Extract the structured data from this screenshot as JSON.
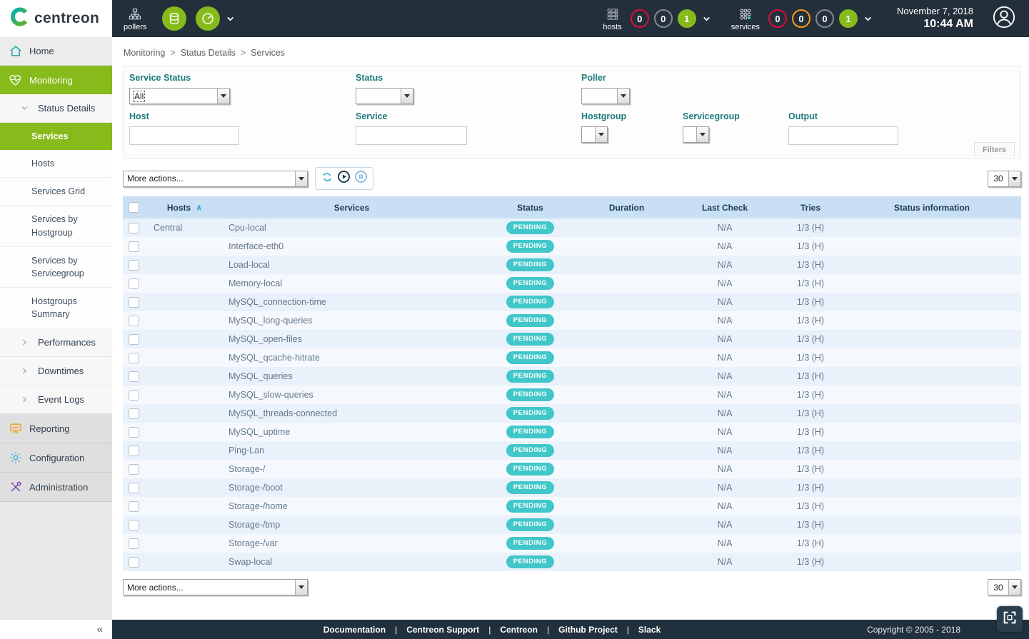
{
  "header": {
    "brand": "centreon",
    "pollers_label": "pollers",
    "hosts_label": "hosts",
    "services_label": "services",
    "hosts_badges": [
      {
        "value": "0",
        "type": "critical"
      },
      {
        "value": "0",
        "type": "unknown"
      },
      {
        "value": "1",
        "type": "ok"
      }
    ],
    "services_badges": [
      {
        "value": "0",
        "type": "critical"
      },
      {
        "value": "0",
        "type": "warning"
      },
      {
        "value": "0",
        "type": "unknown"
      },
      {
        "value": "1",
        "type": "ok"
      }
    ],
    "date": "November 7, 2018",
    "time": "10:44 AM"
  },
  "sidebar": {
    "items": [
      {
        "label": "Home",
        "icon": "home-icon",
        "style": "root"
      },
      {
        "label": "Monitoring",
        "icon": "monitoring-icon",
        "style": "root",
        "active": true
      },
      {
        "label": "Status Details",
        "style": "sub",
        "chevron": "down"
      },
      {
        "label": "Services",
        "style": "leaf",
        "active": true
      },
      {
        "label": "Hosts",
        "style": "leaf"
      },
      {
        "label": "Services Grid",
        "style": "leaf"
      },
      {
        "label": "Services by Hostgroup",
        "style": "leaf"
      },
      {
        "label": "Services by Servicegroup",
        "style": "leaf"
      },
      {
        "label": "Hostgroups Summary",
        "style": "leaf"
      },
      {
        "label": "Performances",
        "style": "sub",
        "chevron": "right"
      },
      {
        "label": "Downtimes",
        "style": "sub",
        "chevron": "right"
      },
      {
        "label": "Event Logs",
        "style": "sub",
        "chevron": "right"
      },
      {
        "label": "Reporting",
        "icon": "reporting-icon",
        "style": "root",
        "graybg": true
      },
      {
        "label": "Configuration",
        "icon": "configuration-icon",
        "style": "root",
        "graybg": true
      },
      {
        "label": "Administration",
        "icon": "administration-icon",
        "style": "root",
        "graybg": true
      }
    ],
    "collapse_glyph": "«"
  },
  "breadcrumb": [
    "Monitoring",
    "Status Details",
    "Services"
  ],
  "filters": {
    "service_status_label": "Service Status",
    "service_status_value": "All",
    "status_label": "Status",
    "poller_label": "Poller",
    "host_label": "Host",
    "service_label": "Service",
    "hostgroup_label": "Hostgroup",
    "servicegroup_label": "Servicegroup",
    "output_label": "Output",
    "filters_tab_label": "Filters"
  },
  "toolbar": {
    "more_actions_label": "More actions...",
    "page_size": "30"
  },
  "table": {
    "columns": [
      "Hosts",
      "Services",
      "Status",
      "Duration",
      "Last Check",
      "Tries",
      "Status information"
    ],
    "sort_column": "Hosts",
    "sort_direction": "asc",
    "rows": [
      {
        "host": "Central",
        "service": "Cpu-local",
        "status": "PENDING",
        "duration": "",
        "last_check": "N/A",
        "tries": "1/3 (H)",
        "info": ""
      },
      {
        "host": "",
        "service": "Interface-eth0",
        "status": "PENDING",
        "duration": "",
        "last_check": "N/A",
        "tries": "1/3 (H)",
        "info": ""
      },
      {
        "host": "",
        "service": "Load-local",
        "status": "PENDING",
        "duration": "",
        "last_check": "N/A",
        "tries": "1/3 (H)",
        "info": ""
      },
      {
        "host": "",
        "service": "Memory-local",
        "status": "PENDING",
        "duration": "",
        "last_check": "N/A",
        "tries": "1/3 (H)",
        "info": ""
      },
      {
        "host": "",
        "service": "MySQL_connection-time",
        "status": "PENDING",
        "duration": "",
        "last_check": "N/A",
        "tries": "1/3 (H)",
        "info": ""
      },
      {
        "host": "",
        "service": "MySQL_long-queries",
        "status": "PENDING",
        "duration": "",
        "last_check": "N/A",
        "tries": "1/3 (H)",
        "info": ""
      },
      {
        "host": "",
        "service": "MySQL_open-files",
        "status": "PENDING",
        "duration": "",
        "last_check": "N/A",
        "tries": "1/3 (H)",
        "info": ""
      },
      {
        "host": "",
        "service": "MySQL_qcache-hitrate",
        "status": "PENDING",
        "duration": "",
        "last_check": "N/A",
        "tries": "1/3 (H)",
        "info": ""
      },
      {
        "host": "",
        "service": "MySQL_queries",
        "status": "PENDING",
        "duration": "",
        "last_check": "N/A",
        "tries": "1/3 (H)",
        "info": ""
      },
      {
        "host": "",
        "service": "MySQL_slow-queries",
        "status": "PENDING",
        "duration": "",
        "last_check": "N/A",
        "tries": "1/3 (H)",
        "info": ""
      },
      {
        "host": "",
        "service": "MySQL_threads-connected",
        "status": "PENDING",
        "duration": "",
        "last_check": "N/A",
        "tries": "1/3 (H)",
        "info": ""
      },
      {
        "host": "",
        "service": "MySQL_uptime",
        "status": "PENDING",
        "duration": "",
        "last_check": "N/A",
        "tries": "1/3 (H)",
        "info": ""
      },
      {
        "host": "",
        "service": "Ping-Lan",
        "status": "PENDING",
        "duration": "",
        "last_check": "N/A",
        "tries": "1/3 (H)",
        "info": ""
      },
      {
        "host": "",
        "service": "Storage-/",
        "status": "PENDING",
        "duration": "",
        "last_check": "N/A",
        "tries": "1/3 (H)",
        "info": ""
      },
      {
        "host": "",
        "service": "Storage-/boot",
        "status": "PENDING",
        "duration": "",
        "last_check": "N/A",
        "tries": "1/3 (H)",
        "info": ""
      },
      {
        "host": "",
        "service": "Storage-/home",
        "status": "PENDING",
        "duration": "",
        "last_check": "N/A",
        "tries": "1/3 (H)",
        "info": ""
      },
      {
        "host": "",
        "service": "Storage-/tmp",
        "status": "PENDING",
        "duration": "",
        "last_check": "N/A",
        "tries": "1/3 (H)",
        "info": ""
      },
      {
        "host": "",
        "service": "Storage-/var",
        "status": "PENDING",
        "duration": "",
        "last_check": "N/A",
        "tries": "1/3 (H)",
        "info": ""
      },
      {
        "host": "",
        "service": "Swap-local",
        "status": "PENDING",
        "duration": "",
        "last_check": "N/A",
        "tries": "1/3 (H)",
        "info": ""
      }
    ]
  },
  "footer": {
    "links": [
      "Documentation",
      "Centreon Support",
      "Centreon",
      "Github Project",
      "Slack"
    ],
    "copyright": "Copyright © 2005 - 2018"
  },
  "colors": {
    "topbar_bg": "#232f3a",
    "brand_green": "#87ba1b",
    "pending_teal": "#41c7c9",
    "status_critical": "#e00b3d",
    "status_warning": "#ff9a13",
    "status_unknown": "#838990",
    "table_header_bg": "#c9dff3",
    "filter_label_teal": "#1d7b7b",
    "footer_bg": "#20303c"
  }
}
